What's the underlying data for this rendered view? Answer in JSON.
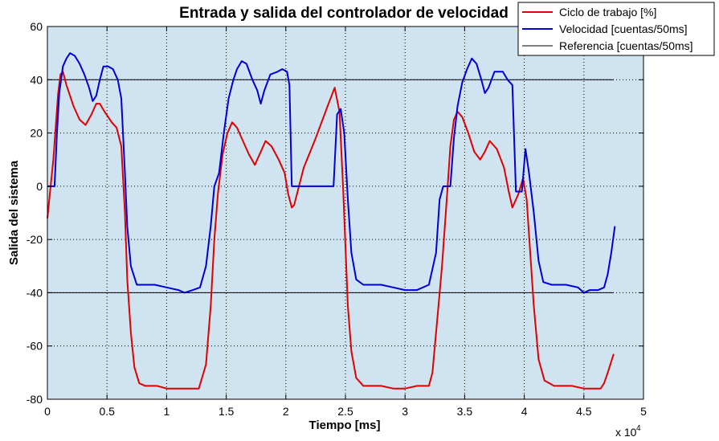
{
  "chart_data": {
    "type": "line",
    "title": "Entrada y salida del controlador de velocidad",
    "xlabel": "Tiempo [ms]",
    "ylabel": "Salida del sistema",
    "x_multiplier": "x 10",
    "x_multiplier_exp": "4",
    "xlim": [
      0,
      50000
    ],
    "ylim": [
      -80,
      60
    ],
    "xticks": [
      0,
      5000,
      10000,
      15000,
      20000,
      25000,
      30000,
      35000,
      40000,
      45000,
      50000
    ],
    "xtick_labels": [
      "0",
      "0.5",
      "1",
      "1.5",
      "2",
      "2.5",
      "3",
      "3.5",
      "4",
      "4.5",
      "5"
    ],
    "yticks": [
      -80,
      -60,
      -40,
      -20,
      0,
      20,
      40,
      60
    ],
    "ytick_labels": [
      "-80",
      "-60",
      "-40",
      "-20",
      "0",
      "20",
      "40",
      "60"
    ],
    "grid": true,
    "legend_position": "top-right",
    "background_color": "#cfe3f1",
    "series": [
      {
        "name": "Ciclo de trabajo [%]",
        "color": "#e00000",
        "points": [
          [
            0,
            -12
          ],
          [
            500,
            10
          ],
          [
            900,
            35
          ],
          [
            1100,
            42
          ],
          [
            1300,
            43
          ],
          [
            1600,
            38
          ],
          [
            2200,
            30
          ],
          [
            2700,
            25
          ],
          [
            3200,
            23
          ],
          [
            3700,
            27
          ],
          [
            4100,
            31
          ],
          [
            4400,
            31
          ],
          [
            4800,
            28
          ],
          [
            5400,
            24
          ],
          [
            5800,
            22
          ],
          [
            6200,
            15
          ],
          [
            6500,
            -10
          ],
          [
            6700,
            -35
          ],
          [
            7000,
            -55
          ],
          [
            7300,
            -68
          ],
          [
            7700,
            -74
          ],
          [
            8200,
            -75
          ],
          [
            9200,
            -75
          ],
          [
            10000,
            -76
          ],
          [
            11000,
            -76
          ],
          [
            12000,
            -76
          ],
          [
            12700,
            -76
          ],
          [
            13300,
            -67
          ],
          [
            13700,
            -45
          ],
          [
            14000,
            -20
          ],
          [
            14300,
            -3
          ],
          [
            14700,
            12
          ],
          [
            15100,
            20
          ],
          [
            15500,
            24
          ],
          [
            15900,
            22
          ],
          [
            16400,
            17
          ],
          [
            16900,
            12
          ],
          [
            17400,
            8
          ],
          [
            17800,
            12
          ],
          [
            18300,
            17
          ],
          [
            18800,
            15
          ],
          [
            19400,
            10
          ],
          [
            19900,
            5
          ],
          [
            20200,
            -3
          ],
          [
            20500,
            -8
          ],
          [
            20700,
            -7
          ],
          [
            21500,
            7
          ],
          [
            22500,
            18
          ],
          [
            23500,
            30
          ],
          [
            24100,
            37
          ],
          [
            24500,
            28
          ],
          [
            24800,
            0
          ],
          [
            25200,
            -45
          ],
          [
            25500,
            -62
          ],
          [
            25900,
            -72
          ],
          [
            26500,
            -75
          ],
          [
            28000,
            -75
          ],
          [
            29000,
            -76
          ],
          [
            30000,
            -76
          ],
          [
            31000,
            -75
          ],
          [
            32000,
            -75
          ],
          [
            32300,
            -70
          ],
          [
            32700,
            -50
          ],
          [
            33100,
            -30
          ],
          [
            33500,
            -5
          ],
          [
            33800,
            15
          ],
          [
            34100,
            25
          ],
          [
            34400,
            28
          ],
          [
            34800,
            26
          ],
          [
            35300,
            20
          ],
          [
            35800,
            13
          ],
          [
            36300,
            10
          ],
          [
            36700,
            13
          ],
          [
            37100,
            17
          ],
          [
            37700,
            14
          ],
          [
            38300,
            7
          ],
          [
            38700,
            -2
          ],
          [
            39000,
            -8
          ],
          [
            39500,
            -3
          ],
          [
            39900,
            3
          ],
          [
            40200,
            -5
          ],
          [
            40500,
            -25
          ],
          [
            40800,
            -45
          ],
          [
            41200,
            -65
          ],
          [
            41700,
            -73
          ],
          [
            42500,
            -75
          ],
          [
            43300,
            -75
          ],
          [
            44000,
            -75
          ],
          [
            45000,
            -76
          ],
          [
            46000,
            -76
          ],
          [
            46400,
            -76
          ],
          [
            46700,
            -74
          ],
          [
            47000,
            -70
          ],
          [
            47500,
            -63
          ]
        ]
      },
      {
        "name": "Velocidad [cuentas/50ms]",
        "color": "#0000d8",
        "points": [
          [
            0,
            0
          ],
          [
            600,
            0
          ],
          [
            800,
            20
          ],
          [
            1000,
            35
          ],
          [
            1300,
            45
          ],
          [
            1600,
            48
          ],
          [
            1900,
            50
          ],
          [
            2300,
            49
          ],
          [
            2700,
            46
          ],
          [
            3100,
            42
          ],
          [
            3500,
            37
          ],
          [
            3800,
            32
          ],
          [
            4100,
            34
          ],
          [
            4400,
            40
          ],
          [
            4700,
            45
          ],
          [
            5100,
            45
          ],
          [
            5500,
            44
          ],
          [
            5900,
            40
          ],
          [
            6200,
            33
          ],
          [
            6500,
            5
          ],
          [
            6700,
            -15
          ],
          [
            7000,
            -30
          ],
          [
            7500,
            -37
          ],
          [
            8000,
            -37
          ],
          [
            9000,
            -37
          ],
          [
            10000,
            -38
          ],
          [
            11000,
            -39
          ],
          [
            11500,
            -40
          ],
          [
            12200,
            -39
          ],
          [
            12800,
            -38
          ],
          [
            13300,
            -30
          ],
          [
            13700,
            -15
          ],
          [
            14000,
            0
          ],
          [
            14400,
            5
          ],
          [
            14800,
            20
          ],
          [
            15200,
            33
          ],
          [
            15600,
            40
          ],
          [
            15900,
            44
          ],
          [
            16300,
            47
          ],
          [
            16700,
            46
          ],
          [
            17200,
            40
          ],
          [
            17600,
            36
          ],
          [
            17900,
            31
          ],
          [
            18200,
            36
          ],
          [
            18700,
            42
          ],
          [
            19300,
            43
          ],
          [
            19700,
            44
          ],
          [
            20100,
            43
          ],
          [
            20300,
            38
          ],
          [
            20500,
            0
          ],
          [
            24000,
            0
          ],
          [
            24300,
            27
          ],
          [
            24600,
            29
          ],
          [
            24900,
            20
          ],
          [
            25200,
            -5
          ],
          [
            25500,
            -25
          ],
          [
            25900,
            -35
          ],
          [
            26500,
            -37
          ],
          [
            28000,
            -37
          ],
          [
            29000,
            -38
          ],
          [
            30000,
            -39
          ],
          [
            31000,
            -39
          ],
          [
            32000,
            -37
          ],
          [
            32600,
            -25
          ],
          [
            32900,
            -5
          ],
          [
            33200,
            0
          ],
          [
            33800,
            0
          ],
          [
            34100,
            18
          ],
          [
            34400,
            30
          ],
          [
            34800,
            39
          ],
          [
            35200,
            44
          ],
          [
            35600,
            48
          ],
          [
            36000,
            46
          ],
          [
            36400,
            40
          ],
          [
            36700,
            35
          ],
          [
            37000,
            37
          ],
          [
            37500,
            43
          ],
          [
            38200,
            43
          ],
          [
            38600,
            40
          ],
          [
            39000,
            38
          ],
          [
            39300,
            -2
          ],
          [
            39800,
            -2
          ],
          [
            40100,
            14
          ],
          [
            40400,
            5
          ],
          [
            40800,
            -10
          ],
          [
            41200,
            -28
          ],
          [
            41600,
            -36
          ],
          [
            42300,
            -37
          ],
          [
            43500,
            -37
          ],
          [
            44500,
            -38
          ],
          [
            45000,
            -40
          ],
          [
            45500,
            -39
          ],
          [
            46200,
            -39
          ],
          [
            46700,
            -38
          ],
          [
            47000,
            -33
          ],
          [
            47300,
            -25
          ],
          [
            47600,
            -15
          ]
        ]
      },
      {
        "name": "Referencia [cuentas/50ms]",
        "color": "#000000",
        "points": [
          [
            0,
            40
          ],
          [
            47500,
            40
          ]
        ]
      },
      {
        "name": "",
        "color": "#000000",
        "points": [
          [
            0,
            -40
          ],
          [
            47500,
            -40
          ]
        ]
      }
    ]
  }
}
